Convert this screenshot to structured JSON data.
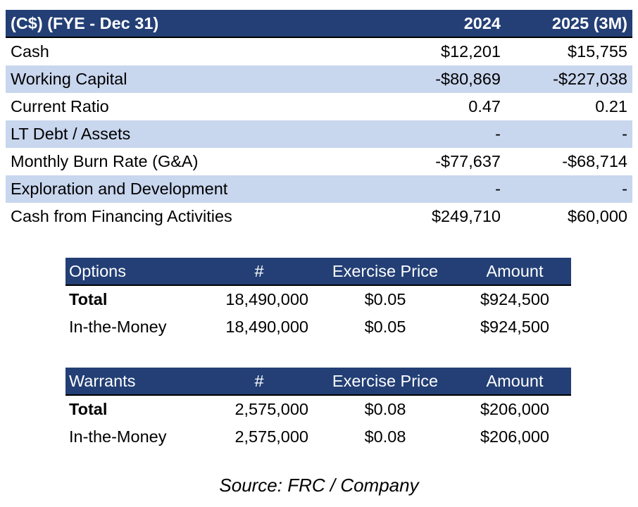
{
  "financials": {
    "header": {
      "label": "(C$) (FYE - Dec 31)",
      "col1": "2024",
      "col2": "2025 (3M)"
    },
    "rows": [
      {
        "label": "Cash",
        "v1": "$12,201",
        "v2": "$15,755"
      },
      {
        "label": "Working Capital",
        "v1": "-$80,869",
        "v2": "-$227,038"
      },
      {
        "label": "Current Ratio",
        "v1": "0.47",
        "v2": "0.21"
      },
      {
        "label": "LT Debt / Assets",
        "v1": "-",
        "v2": "-"
      },
      {
        "label": "Monthly Burn Rate (G&A)",
        "v1": "-$77,637",
        "v2": "-$68,714"
      },
      {
        "label": "Exploration and Development",
        "v1": "-",
        "v2": "-"
      },
      {
        "label": "Cash from Financing Activities",
        "v1": "$249,710",
        "v2": "$60,000"
      }
    ]
  },
  "options": {
    "header": {
      "label": "Options",
      "count": "#",
      "price": "Exercise Price",
      "amount": "Amount"
    },
    "rows": [
      {
        "label": "Total",
        "count": "18,490,000",
        "price": "$0.05",
        "amount": "$924,500"
      },
      {
        "label": "In-the-Money",
        "count": "18,490,000",
        "price": "$0.05",
        "amount": "$924,500"
      }
    ]
  },
  "warrants": {
    "header": {
      "label": "Warrants",
      "count": "#",
      "price": "Exercise Price",
      "amount": "Amount"
    },
    "rows": [
      {
        "label": "Total",
        "count": "2,575,000",
        "price": "$0.08",
        "amount": "$206,000"
      },
      {
        "label": "In-the-Money",
        "count": "2,575,000",
        "price": "$0.08",
        "amount": "$206,000"
      }
    ]
  },
  "source": "Source: FRC / Company",
  "colors": {
    "header_bg": "#233f75",
    "row_shade": "#c8d6ee"
  }
}
